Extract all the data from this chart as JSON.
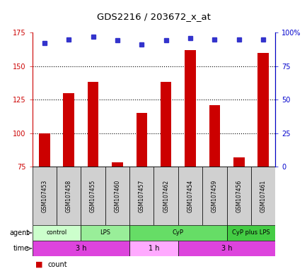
{
  "title": "GDS2216 / 203672_x_at",
  "samples": [
    "GSM107453",
    "GSM107458",
    "GSM107455",
    "GSM107460",
    "GSM107457",
    "GSM107462",
    "GSM107454",
    "GSM107459",
    "GSM107456",
    "GSM107461"
  ],
  "counts": [
    100,
    130,
    138,
    78,
    115,
    138,
    162,
    121,
    82,
    160
  ],
  "percentile_ranks": [
    92,
    95,
    97,
    94,
    91,
    94,
    96,
    95,
    95,
    95
  ],
  "ylim_left": [
    75,
    175
  ],
  "ylim_right": [
    0,
    100
  ],
  "yticks_left": [
    75,
    100,
    125,
    150,
    175
  ],
  "yticks_right": [
    0,
    25,
    50,
    75,
    100
  ],
  "ytick_labels_right": [
    "0",
    "25",
    "50",
    "75",
    "100%"
  ],
  "bar_color": "#cc0000",
  "marker_color": "#3333cc",
  "agent_groups": [
    {
      "label": "control",
      "start": 0,
      "end": 2,
      "color": "#ccffcc"
    },
    {
      "label": "LPS",
      "start": 2,
      "end": 4,
      "color": "#99ee99"
    },
    {
      "label": "CyP",
      "start": 4,
      "end": 8,
      "color": "#66dd66"
    },
    {
      "label": "CyP plus LPS",
      "start": 8,
      "end": 10,
      "color": "#44cc44"
    }
  ],
  "time_groups": [
    {
      "label": "3 h",
      "start": 0,
      "end": 4,
      "color": "#dd44dd"
    },
    {
      "label": "1 h",
      "start": 4,
      "end": 6,
      "color": "#ffaaff"
    },
    {
      "label": "3 h",
      "start": 6,
      "end": 10,
      "color": "#dd44dd"
    }
  ],
  "label_color_left": "#cc0000",
  "label_color_right": "#0000cc",
  "sample_box_color": "#d0d0d0"
}
